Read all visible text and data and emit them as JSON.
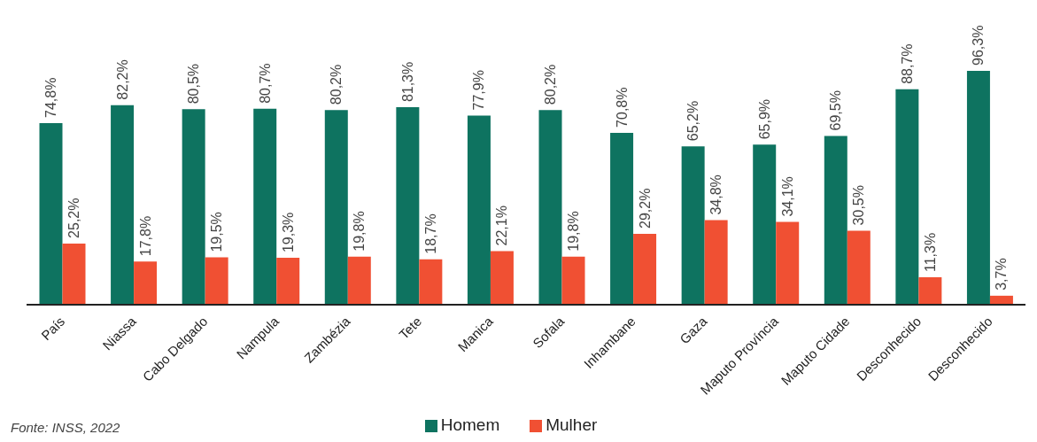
{
  "chart_data": {
    "type": "bar",
    "categories": [
      "País",
      "Niassa",
      "Cabo Delgado",
      "Nampula",
      "Zambézia",
      "Tete",
      "Manica",
      "Sofala",
      "Inhambane",
      "Gaza",
      "Maputo Província",
      "Maputo Cidade",
      "Desconhecido",
      "Desconhecido"
    ],
    "series": [
      {
        "name": "Homem",
        "color": "#0e7360",
        "values": [
          74.8,
          82.2,
          80.5,
          80.7,
          80.2,
          81.3,
          77.9,
          80.2,
          70.8,
          65.2,
          65.9,
          69.5,
          88.7,
          96.3
        ],
        "value_labels": [
          "74,8%",
          "82,2%",
          "80,5%",
          "80,7%",
          "80,2%",
          "81,3%",
          "77,9%",
          "80,2%",
          "70,8%",
          "65,2%",
          "65,9%",
          "69,5%",
          "88,7%",
          "96,3%"
        ]
      },
      {
        "name": "Mulher",
        "color": "#f05033",
        "values": [
          25.2,
          17.8,
          19.5,
          19.3,
          19.8,
          18.7,
          22.1,
          19.8,
          29.2,
          34.8,
          34.1,
          30.5,
          11.3,
          3.7
        ],
        "value_labels": [
          "25,2%",
          "17,8%",
          "19,5%",
          "19,3%",
          "19,8%",
          "18,7%",
          "22,1%",
          "19,8%",
          "29,2%",
          "34,8%",
          "34,1%",
          "30,5%",
          "11,3%",
          "3,7%"
        ]
      }
    ],
    "legend": "bottom",
    "grid": false,
    "annotations": [
      "Fonte: INSS, 2022"
    ]
  }
}
